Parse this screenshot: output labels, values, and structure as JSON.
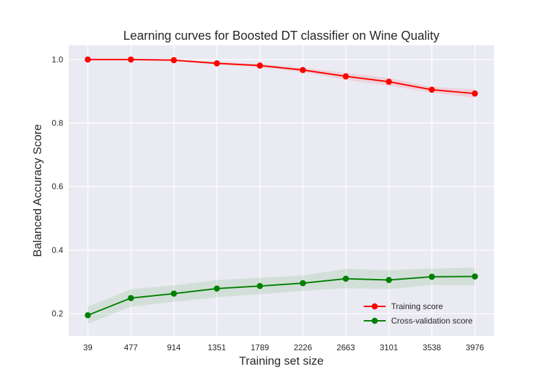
{
  "chart_data": {
    "type": "line",
    "title": "Learning curves for Boosted DT classifier on Wine Quality",
    "xlabel": "Training set size",
    "ylabel": "Balanced Accuracy Score",
    "x": [
      39,
      477,
      914,
      1351,
      1789,
      2226,
      2663,
      3101,
      3538,
      3976
    ],
    "xticks": [
      "39",
      "477",
      "914",
      "1351",
      "1789",
      "2226",
      "2663",
      "3101",
      "3538",
      "3976"
    ],
    "yticks": [
      "0.2",
      "0.4",
      "0.6",
      "0.8",
      "1.0"
    ],
    "ylim": [
      0.13,
      1.045
    ],
    "grid": true,
    "legend_position": "bottom-right",
    "series": [
      {
        "name": "Training score",
        "color": "#ff0000",
        "values": [
          1.0,
          1.0,
          0.998,
          0.988,
          0.981,
          0.967,
          0.947,
          0.93,
          0.905,
          0.893
        ],
        "band_lower": [
          1.0,
          0.999,
          0.995,
          0.984,
          0.976,
          0.96,
          0.936,
          0.918,
          0.896,
          0.88
        ],
        "band_upper": [
          1.0,
          1.0,
          1.0,
          0.992,
          0.986,
          0.974,
          0.958,
          0.942,
          0.914,
          0.906
        ]
      },
      {
        "name": "Cross-validation score",
        "color": "#008000",
        "values": [
          0.195,
          0.249,
          0.263,
          0.279,
          0.287,
          0.296,
          0.31,
          0.306,
          0.316,
          0.317
        ],
        "band_lower": [
          0.168,
          0.222,
          0.237,
          0.252,
          0.261,
          0.272,
          0.28,
          0.277,
          0.29,
          0.289
        ],
        "band_upper": [
          0.222,
          0.277,
          0.289,
          0.306,
          0.313,
          0.32,
          0.341,
          0.337,
          0.342,
          0.345
        ]
      }
    ]
  }
}
